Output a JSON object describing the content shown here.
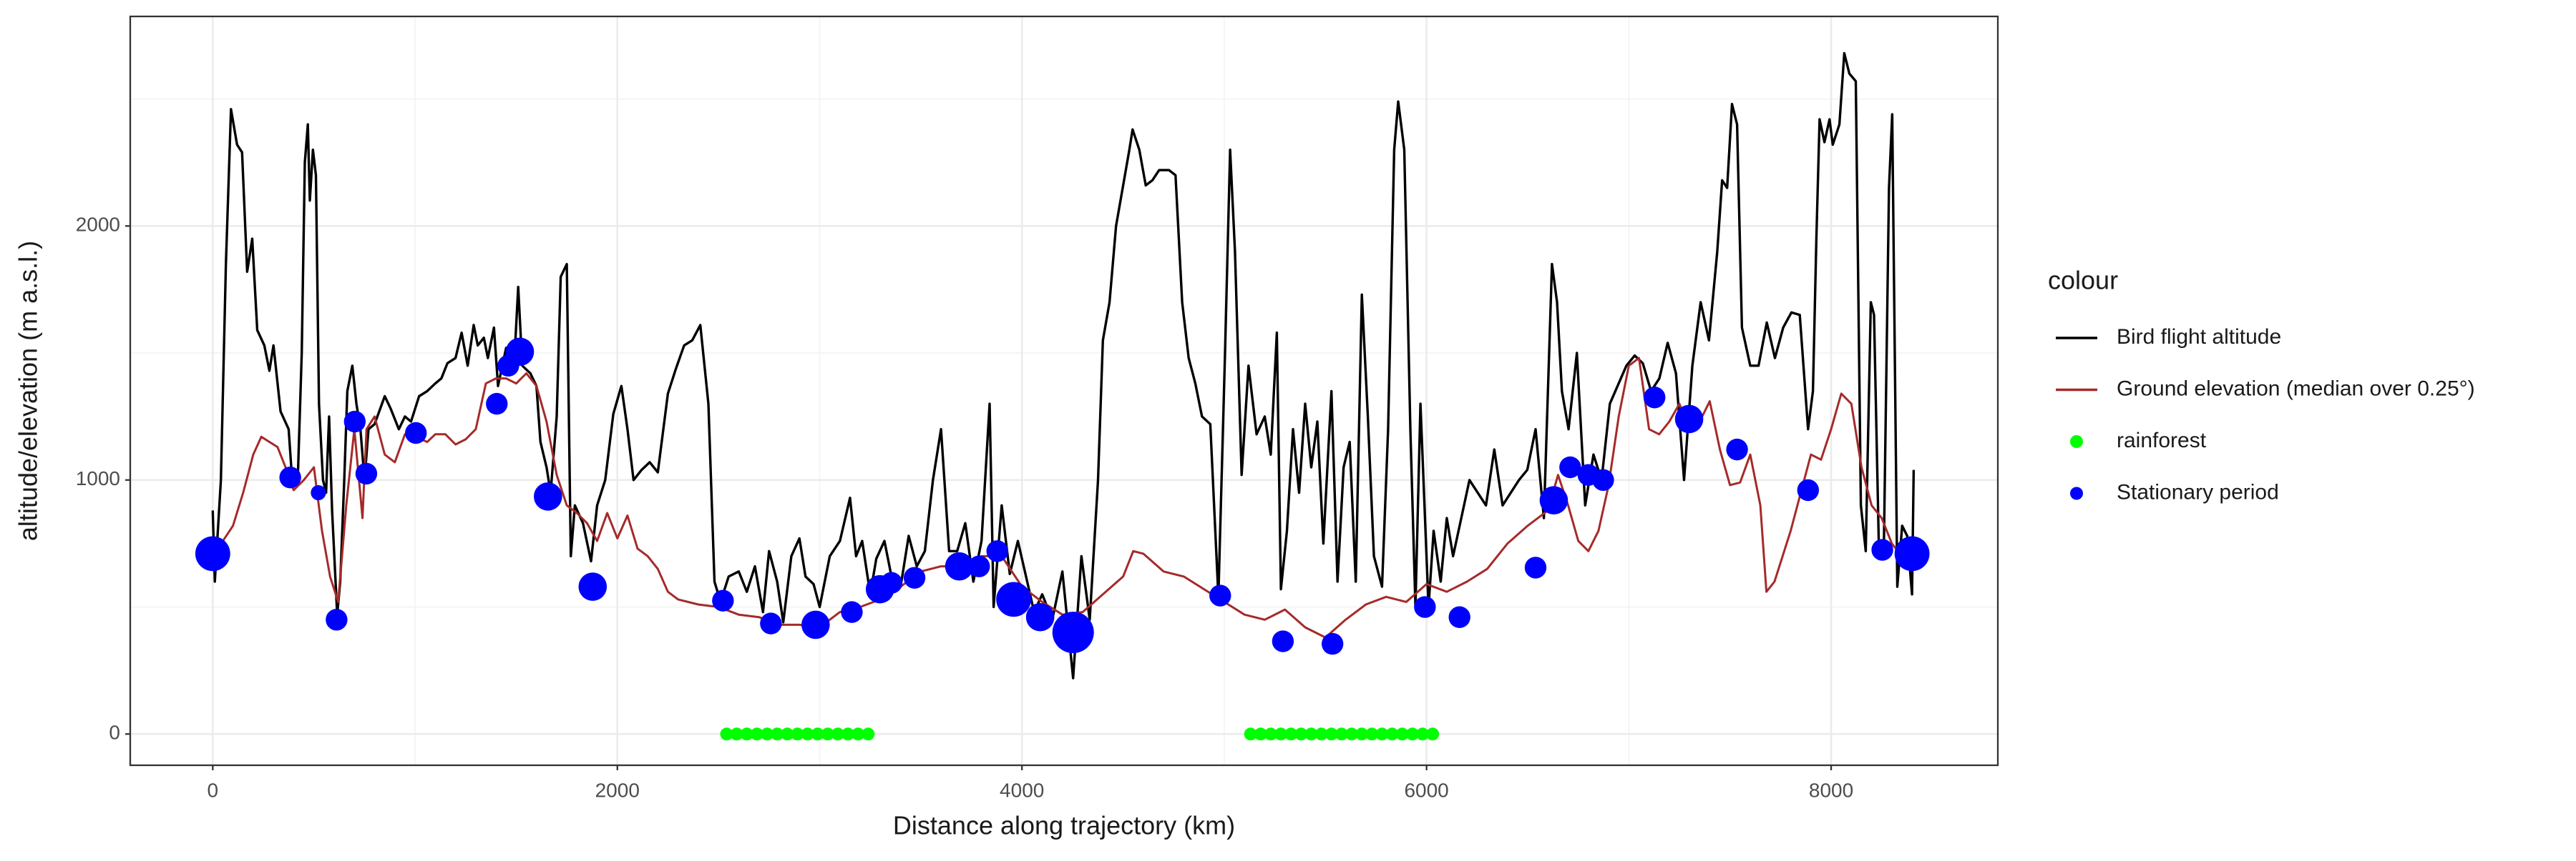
{
  "chart_data": {
    "type": "line",
    "xlabel": "Distance along trajectory (km)",
    "ylabel": "altitude/elevation (m a.s.l.)",
    "xlim": [
      -408,
      8824
    ],
    "ylim": [
      -123,
      2825
    ],
    "xticks": [
      0,
      2000,
      4000,
      6000,
      8000
    ],
    "yticks": [
      0,
      1000,
      2000
    ],
    "grid": true,
    "legend_title": "colour",
    "legend_position": "right",
    "series": [
      {
        "name": "Bird flight altitude",
        "mark": "line",
        "color": "#000000",
        "x": [
          0,
          10,
          40,
          65,
          90,
          120,
          145,
          170,
          195,
          220,
          255,
          280,
          300,
          335,
          375,
          395,
          420,
          440,
          455,
          470,
          480,
          495,
          510,
          525,
          545,
          560,
          575,
          590,
          615,
          630,
          650,
          665,
          690,
          710,
          730,
          750,
          770,
          800,
          850,
          880,
          920,
          950,
          980,
          1020,
          1060,
          1100,
          1130,
          1160,
          1200,
          1230,
          1260,
          1290,
          1310,
          1340,
          1360,
          1390,
          1410,
          1450,
          1490,
          1510,
          1530,
          1570,
          1600,
          1620,
          1650,
          1670,
          1700,
          1720,
          1750,
          1770,
          1790,
          1830,
          1870,
          1900,
          1940,
          1980,
          2020,
          2050,
          2080,
          2120,
          2160,
          2200,
          2250,
          2290,
          2330,
          2370,
          2410,
          2450,
          2480,
          2510,
          2550,
          2600,
          2640,
          2680,
          2720,
          2750,
          2790,
          2820,
          2860,
          2900,
          2930,
          2970,
          3000,
          3050,
          3100,
          3150,
          3180,
          3210,
          3250,
          3280,
          3320,
          3360,
          3400,
          3440,
          3480,
          3520,
          3560,
          3600,
          3640,
          3680,
          3720,
          3760,
          3800,
          3840,
          3860,
          3900,
          3940,
          3980,
          4020,
          4060,
          4100,
          4150,
          4200,
          4253,
          4294,
          4335,
          4376,
          4400,
          4433,
          4465,
          4498,
          4531,
          4547,
          4580,
          4612,
          4645,
          4678,
          4727,
          4759,
          4792,
          4824,
          4857,
          4890,
          4931,
          4971,
          5004,
          5029,
          5053,
          5086,
          5120,
          5160,
          5200,
          5230,
          5260,
          5280,
          5310,
          5340,
          5370,
          5400,
          5430,
          5460,
          5490,
          5530,
          5560,
          5590,
          5620,
          5650,
          5680,
          5710,
          5740,
          5780,
          5810,
          5840,
          5860,
          5890,
          5920,
          5945,
          5970,
          6010,
          6035,
          6070,
          6100,
          6131,
          6212,
          6294,
          6335,
          6376,
          6457,
          6498,
          6539,
          6580,
          6620,
          6645,
          6669,
          6702,
          6743,
          6784,
          6825,
          6865,
          6906,
          6988,
          7029,
          7069,
          7110,
          7151,
          7192,
          7233,
          7273,
          7314,
          7355,
          7396,
          7437,
          7461,
          7486,
          7510,
          7535,
          7559,
          7600,
          7641,
          7682,
          7722,
          7763,
          7804,
          7845,
          7886,
          7910,
          7927,
          7943,
          7967,
          7992,
          8008,
          8041,
          8065,
          8090,
          8122,
          8147,
          8171,
          8196,
          8212,
          8237,
          8261,
          8286,
          8302,
          8327,
          8351,
          8376,
          8400,
          8408
        ],
        "values": [
          880,
          600,
          1000,
          1850,
          2460,
          2320,
          2290,
          1820,
          1950,
          1590,
          1530,
          1430,
          1530,
          1270,
          1200,
          970,
          1000,
          1500,
          2250,
          2400,
          2100,
          2300,
          2200,
          1300,
          1000,
          950,
          1250,
          880,
          470,
          600,
          1000,
          1350,
          1450,
          1300,
          1200,
          1000,
          1200,
          1220,
          1330,
          1280,
          1200,
          1250,
          1230,
          1330,
          1350,
          1380,
          1400,
          1460,
          1480,
          1580,
          1450,
          1610,
          1530,
          1560,
          1480,
          1600,
          1370,
          1520,
          1460,
          1760,
          1450,
          1420,
          1370,
          1150,
          1050,
          950,
          1250,
          1800,
          1850,
          700,
          900,
          830,
          680,
          900,
          1000,
          1260,
          1370,
          1200,
          1000,
          1040,
          1070,
          1030,
          1340,
          1440,
          1530,
          1550,
          1610,
          1300,
          600,
          520,
          620,
          640,
          560,
          660,
          480,
          720,
          600,
          440,
          700,
          770,
          620,
          590,
          500,
          700,
          760,
          930,
          700,
          760,
          550,
          690,
          760,
          600,
          580,
          780,
          660,
          720,
          1000,
          1200,
          720,
          720,
          830,
          600,
          760,
          1300,
          500,
          900,
          630,
          760,
          620,
          480,
          550,
          450,
          640,
          220,
          700,
          450,
          1000,
          1550,
          1700,
          2000,
          2150,
          2300,
          2380,
          2300,
          2160,
          2180,
          2220,
          2220,
          2200,
          1700,
          1480,
          1380,
          1250,
          1220,
          540,
          1500,
          2300,
          1900,
          1020,
          1450,
          1180,
          1250,
          1100,
          1580,
          570,
          800,
          1200,
          950,
          1300,
          1050,
          1230,
          750,
          1350,
          600,
          1050,
          1150,
          600,
          1730,
          1250,
          700,
          580,
          1200,
          2300,
          2490,
          2300,
          1200,
          500,
          1300,
          500,
          800,
          600,
          850,
          700,
          1000,
          900,
          1120,
          900,
          1000,
          1040,
          1200,
          850,
          1850,
          1700,
          1350,
          1200,
          1500,
          900,
          1100,
          1000,
          1300,
          1450,
          1490,
          1460,
          1350,
          1400,
          1540,
          1420,
          1000,
          1450,
          1700,
          1550,
          1900,
          2180,
          2150,
          2480,
          2400,
          1600,
          1450,
          1450,
          1620,
          1480,
          1600,
          1660,
          1650,
          1200,
          1350,
          1950,
          2420,
          2330,
          2420,
          2320,
          2400,
          2680,
          2600,
          2570,
          900,
          720,
          1700,
          1650,
          700,
          750,
          2150,
          2440,
          580,
          820,
          780,
          550,
          1040
        ]
      },
      {
        "name": "Ground elevation (median over 0.25°)",
        "mark": "line",
        "color": "#a52a2a",
        "x": [
          0,
          50,
          100,
          150,
          200,
          240,
          280,
          320,
          360,
          400,
          450,
          500,
          540,
          580,
          620,
          660,
          700,
          740,
          760,
          800,
          850,
          900,
          950,
          1000,
          1060,
          1100,
          1150,
          1200,
          1250,
          1300,
          1350,
          1400,
          1450,
          1500,
          1550,
          1600,
          1650,
          1700,
          1750,
          1800,
          1850,
          1900,
          1950,
          2000,
          2050,
          2100,
          2150,
          2200,
          2250,
          2300,
          2400,
          2500,
          2600,
          2700,
          2800,
          2900,
          3000,
          3100,
          3200,
          3300,
          3400,
          3500,
          3600,
          3700,
          3800,
          3900,
          4000,
          4100,
          4200,
          4300,
          4400,
          4500,
          4550,
          4600,
          4700,
          4800,
          4900,
          5000,
          5100,
          5200,
          5300,
          5400,
          5500,
          5600,
          5700,
          5800,
          5900,
          6000,
          6100,
          6200,
          6300,
          6400,
          6500,
          6600,
          6650,
          6700,
          6750,
          6800,
          6850,
          6900,
          6950,
          7000,
          7050,
          7100,
          7150,
          7200,
          7250,
          7300,
          7350,
          7400,
          7450,
          7500,
          7550,
          7600,
          7650,
          7680,
          7720,
          7800,
          7850,
          7900,
          7950,
          8000,
          8050,
          8100,
          8150,
          8200,
          8250,
          8300,
          8350,
          8416
        ],
        "values": [
          700,
          760,
          820,
          950,
          1100,
          1170,
          1150,
          1130,
          1050,
          960,
          1000,
          1050,
          800,
          620,
          520,
          900,
          1200,
          850,
          1200,
          1250,
          1100,
          1070,
          1180,
          1170,
          1150,
          1180,
          1180,
          1140,
          1160,
          1200,
          1380,
          1400,
          1400,
          1380,
          1420,
          1370,
          1230,
          1020,
          900,
          870,
          830,
          760,
          870,
          770,
          860,
          730,
          700,
          650,
          560,
          530,
          510,
          500,
          470,
          460,
          430,
          430,
          420,
          480,
          500,
          530,
          580,
          640,
          660,
          660,
          700,
          700,
          580,
          520,
          470,
          480,
          550,
          620,
          720,
          710,
          640,
          620,
          570,
          520,
          470,
          450,
          490,
          420,
          380,
          450,
          510,
          540,
          520,
          590,
          560,
          600,
          650,
          750,
          820,
          880,
          1020,
          900,
          760,
          720,
          800,
          980,
          1250,
          1450,
          1480,
          1200,
          1180,
          1230,
          1300,
          1200,
          1230,
          1310,
          1120,
          980,
          990,
          1100,
          900,
          560,
          600,
          800,
          950,
          1100,
          1080,
          1200,
          1340,
          1300,
          1050,
          900,
          850,
          750,
          700,
          700
        ]
      },
      {
        "name": "rainforest",
        "mark": "point",
        "color": "#00ff00",
        "x": [
          2540,
          2590,
          2640,
          2690,
          2740,
          2790,
          2840,
          2890,
          2940,
          2990,
          3040,
          3090,
          3140,
          3190,
          3240,
          5130,
          5180,
          5230,
          5280,
          5330,
          5380,
          5430,
          5480,
          5530,
          5580,
          5630,
          5680,
          5730,
          5780,
          5830,
          5880,
          5930,
          5980,
          6030
        ],
        "values": [
          0,
          0,
          0,
          0,
          0,
          0,
          0,
          0,
          0,
          0,
          0,
          0,
          0,
          0,
          0,
          0,
          0,
          0,
          0,
          0,
          0,
          0,
          0,
          0,
          0,
          0,
          0,
          0,
          0,
          0,
          0,
          0,
          0,
          0
        ]
      },
      {
        "name": "Stationary period",
        "mark": "point",
        "color": "#0000ff",
        "x": [
          0,
          383,
          522,
          612,
          702,
          759,
          1004,
          1404,
          1461,
          1518,
          1657,
          1878,
          2522,
          2759,
          2980,
          3159,
          3298,
          3355,
          3469,
          3690,
          3788,
          3878,
          3959,
          4090,
          4253,
          4980,
          5290,
          5535,
          5992,
          6163,
          6539,
          6629,
          6710,
          6800,
          6873,
          7127,
          7298,
          7535,
          7886,
          8253,
          8400
        ],
        "values": [
          710,
          1010,
          950,
          450,
          1230,
          1025,
          1185,
          1300,
          1450,
          1505,
          935,
          580,
          525,
          435,
          430,
          480,
          570,
          595,
          615,
          660,
          660,
          720,
          530,
          460,
          400,
          545,
          365,
          355,
          500,
          460,
          655,
          920,
          1050,
          1020,
          1000,
          1325,
          1240,
          1120,
          960,
          725,
          710
        ],
        "sizes": [
          4,
          2,
          1,
          2,
          2,
          2,
          2,
          2,
          2,
          3,
          3,
          3,
          2,
          2,
          3,
          2,
          3,
          2,
          2,
          3,
          2,
          2,
          4,
          3,
          5,
          2,
          2,
          2,
          2,
          2,
          2,
          3,
          2,
          2,
          2,
          2,
          3,
          2,
          2,
          2,
          4
        ]
      }
    ]
  }
}
